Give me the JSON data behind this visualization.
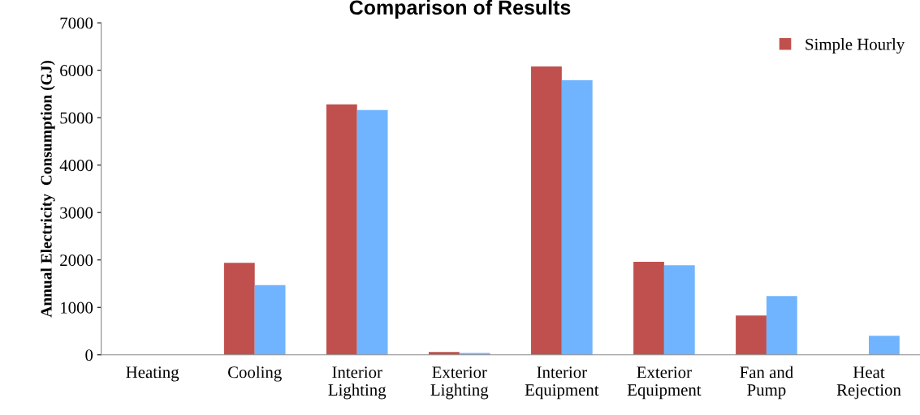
{
  "chart_data": {
    "type": "bar",
    "title": "Comparison of Results",
    "ylabel": "Annual Electricity  Consumption (GJ)",
    "categories": [
      "Heating",
      "Cooling",
      "Interior\nLighting",
      "Exterior\nLighting",
      "Interior\nEquipment",
      "Exterior\nEquipment",
      "Fan and\nPump",
      "Heat\nRejection"
    ],
    "series": [
      {
        "name": "Simple Hourly",
        "color": "#c0504d",
        "values": [
          0,
          1940,
          5280,
          60,
          6080,
          1960,
          830,
          0
        ]
      },
      {
        "color": "#70b4ff",
        "values": [
          0,
          1470,
          5160,
          40,
          5790,
          1890,
          1240,
          400
        ]
      }
    ],
    "ylim": [
      0,
      7000
    ],
    "yticks": [
      0,
      1000,
      2000,
      3000,
      4000,
      5000,
      6000,
      7000
    ],
    "grid": false,
    "legend": "top right"
  }
}
